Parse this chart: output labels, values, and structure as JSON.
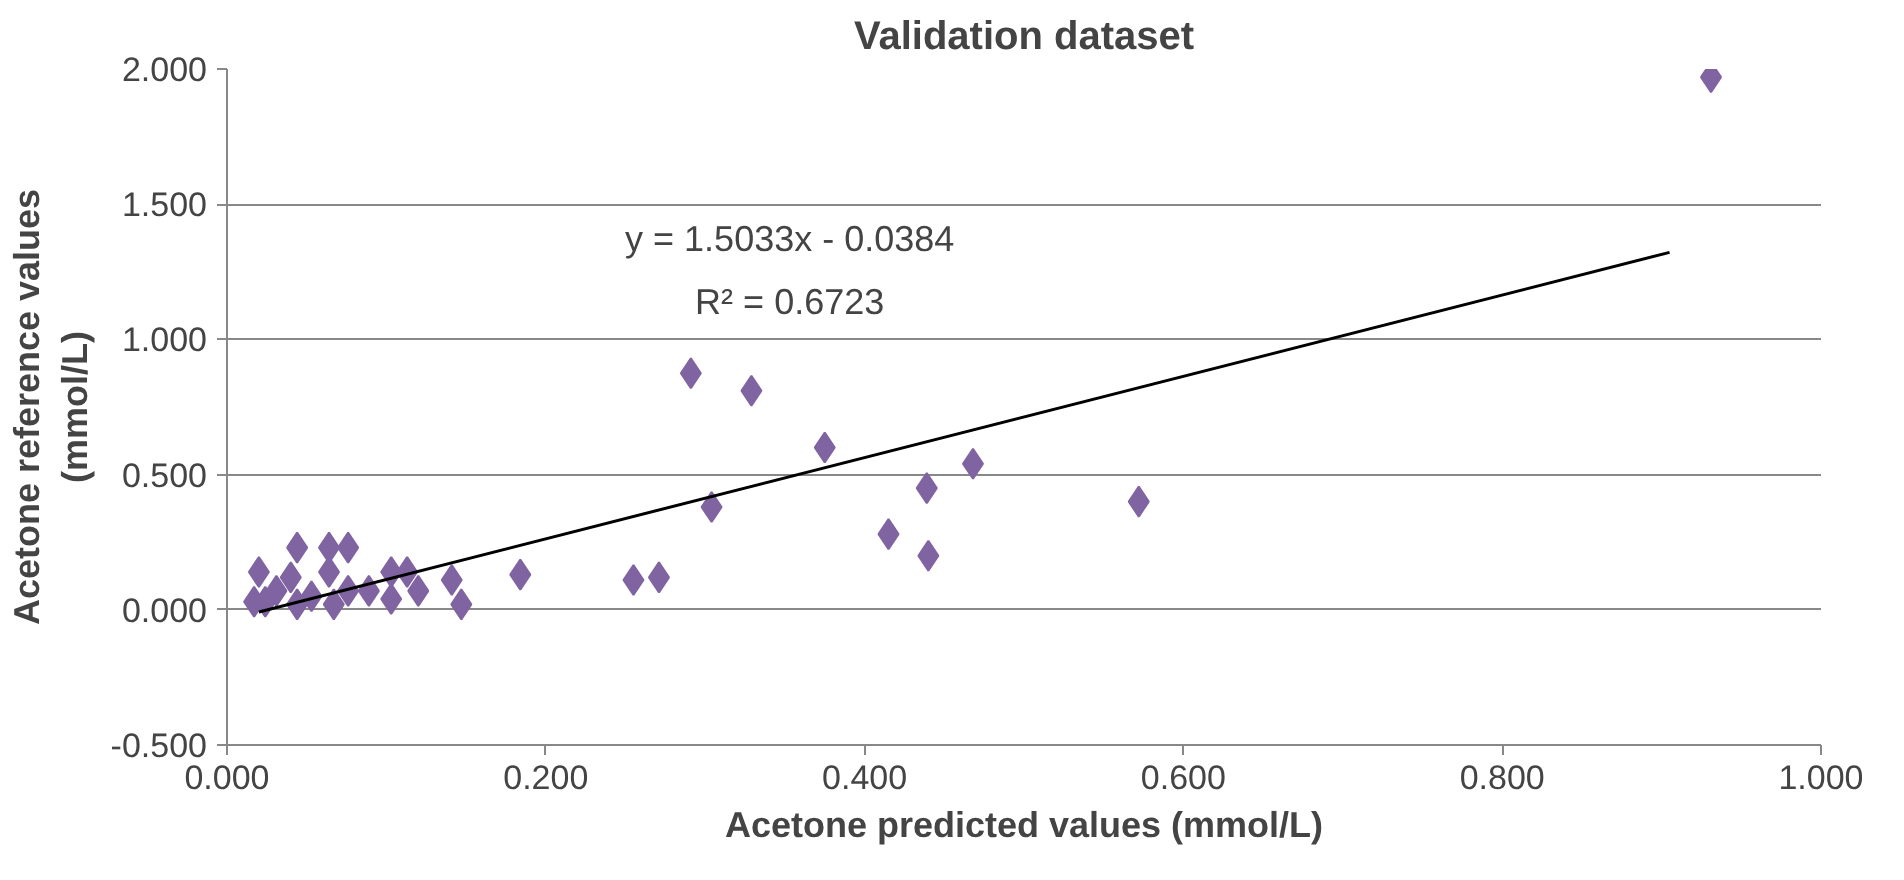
{
  "chart_data": {
    "type": "scatter",
    "title": "Validation dataset",
    "xlabel": "Acetone predicted values (mmol/L)",
    "ylabel": "Acetone reference values\n(mmol/L)",
    "annotations": [
      "y = 1.5033x - 0.0384",
      "R² = 0.6723"
    ],
    "grid": "y",
    "xlim": [
      0,
      1
    ],
    "xticks": [
      {
        "value": 0,
        "label": "0.000"
      },
      {
        "value": 0.2,
        "label": "0.200"
      },
      {
        "value": 0.4,
        "label": "0.400"
      },
      {
        "value": 0.6,
        "label": "0.600"
      },
      {
        "value": 0.8,
        "label": "0.800"
      },
      {
        "value": 1,
        "label": "1.000"
      }
    ],
    "ylim": [
      -0.5,
      2
    ],
    "yticks": [
      {
        "value": -0.5,
        "label": "-0.500"
      },
      {
        "value": 0,
        "label": "0.000"
      },
      {
        "value": 0.5,
        "label": "0.500"
      },
      {
        "value": 1,
        "label": "1.000"
      },
      {
        "value": 1.5,
        "label": "1.500"
      },
      {
        "value": 2,
        "label": "2.000"
      }
    ],
    "series": [
      {
        "marker": "diamond",
        "color": "#8064a2",
        "x": [
          0.931,
          0.291,
          0.329,
          0.375,
          0.304,
          0.468,
          0.439,
          0.415,
          0.44,
          0.572,
          0.255,
          0.271,
          0.184,
          0.147,
          0.141,
          0.02,
          0.044,
          0.064,
          0.076,
          0.031,
          0.024,
          0.053,
          0.076,
          0.103,
          0.113,
          0.12,
          0.103,
          0.04,
          0.064,
          0.089,
          0.017,
          0.044,
          0.067
        ],
        "values": [
          1.97,
          0.875,
          0.81,
          0.6,
          0.38,
          0.54,
          0.45,
          0.28,
          0.2,
          0.4,
          0.11,
          0.12,
          0.13,
          0.02,
          0.11,
          0.14,
          0.23,
          0.23,
          0.23,
          0.07,
          0.03,
          0.05,
          0.07,
          0.14,
          0.14,
          0.07,
          0.04,
          0.12,
          0.14,
          0.07,
          0.03,
          0.02,
          0.02
        ]
      },
      {
        "type": "line",
        "color": "#000000",
        "x": [
          0.02,
          0.905
        ],
        "values": [
          -0.008,
          1.322
        ]
      }
    ]
  }
}
